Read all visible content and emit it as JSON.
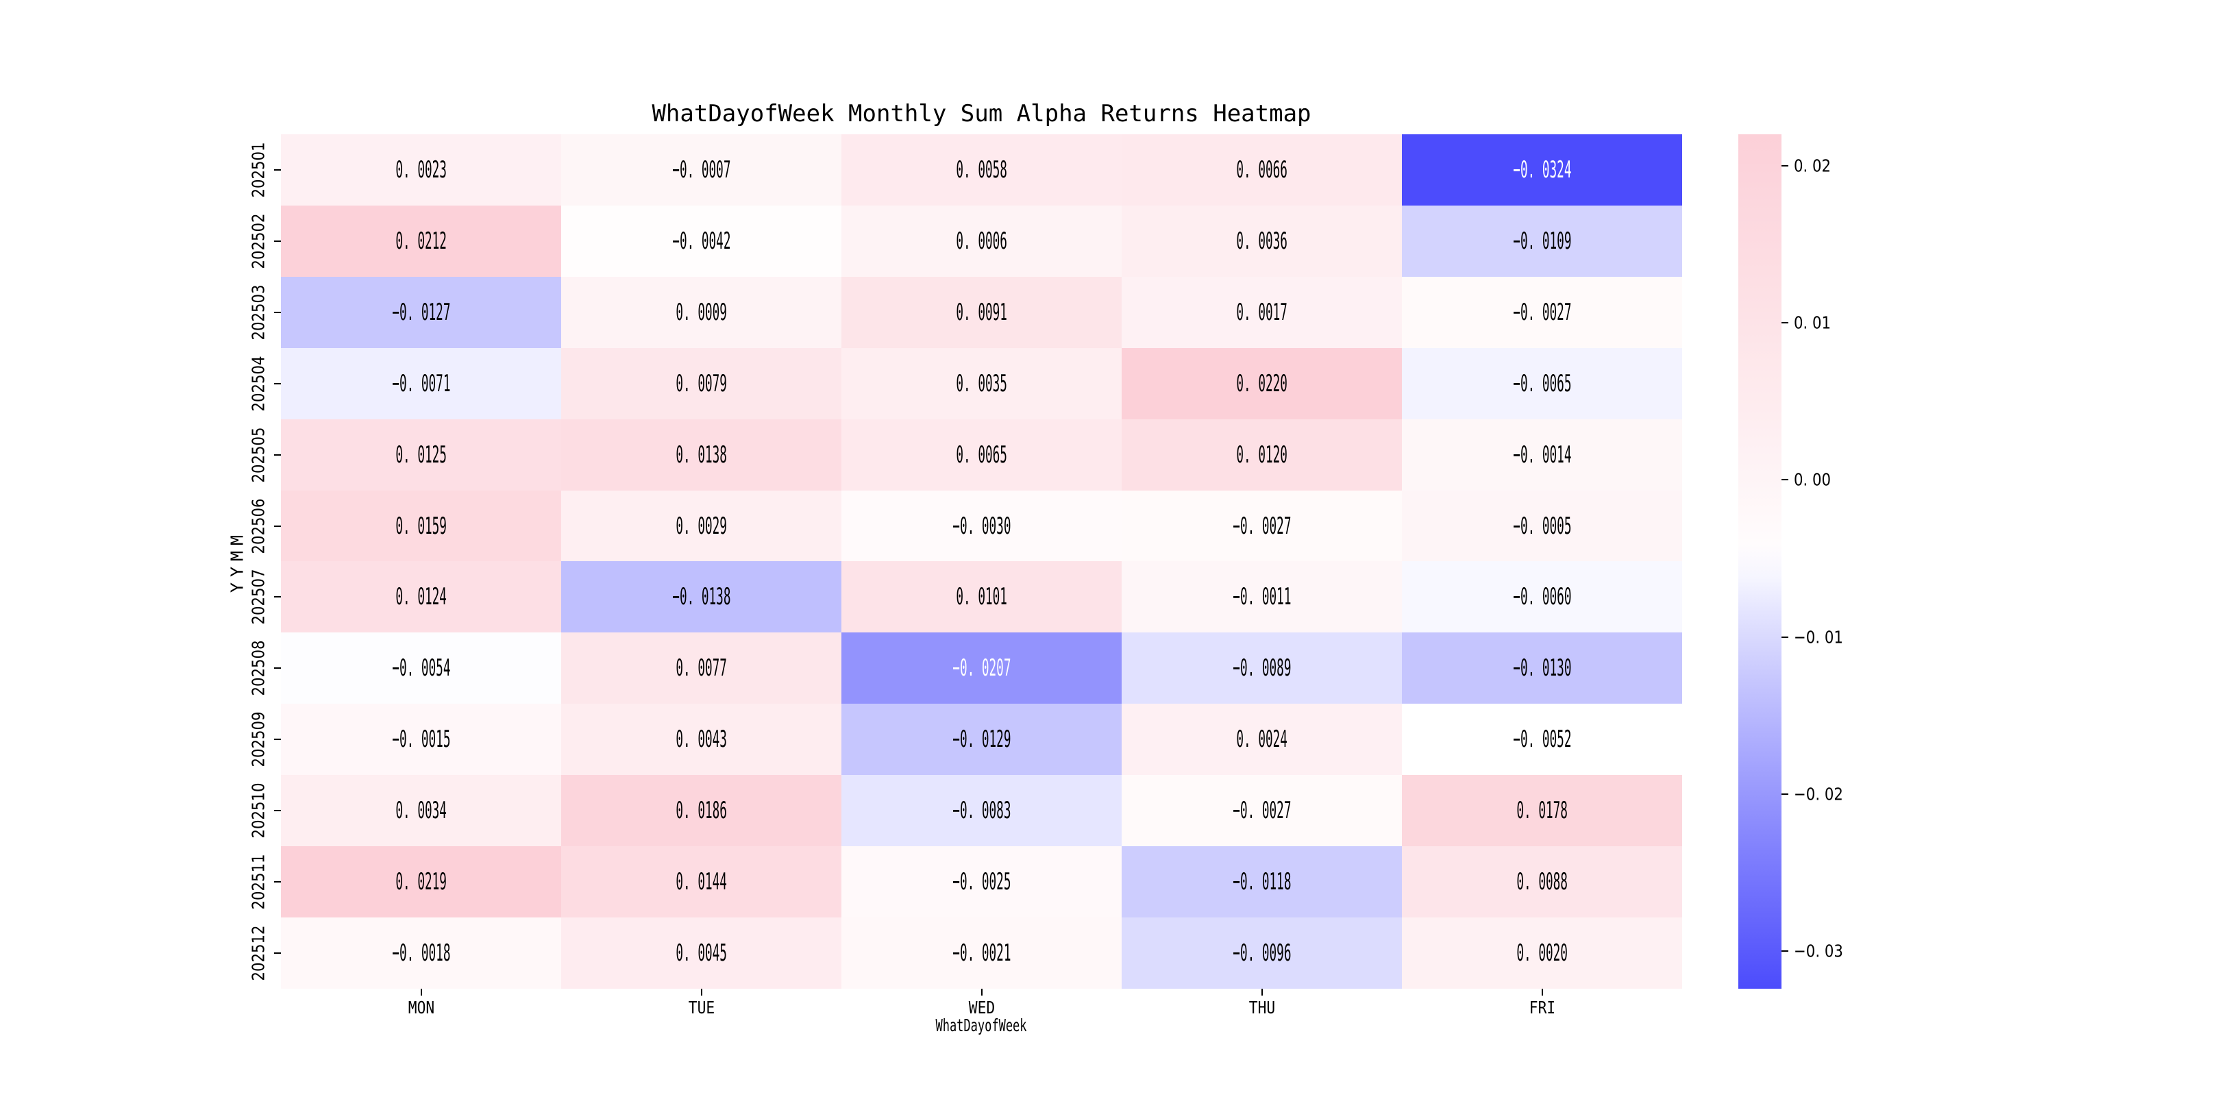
{
  "figure": {
    "background_color": "#ffffff",
    "text_color": "#000000"
  },
  "chart_data": {
    "type": "heatmap",
    "title": "WhatDayofWeek Monthly Sum Alpha Returns Heatmap",
    "xlabel": "WhatDayofWeek",
    "ylabel": "YYMM",
    "columns": [
      "MON",
      "TUE",
      "WED",
      "THU",
      "FRI"
    ],
    "rows": [
      "202501",
      "202502",
      "202503",
      "202504",
      "202505",
      "202506",
      "202507",
      "202508",
      "202509",
      "202510",
      "202511",
      "202512"
    ],
    "values": [
      [
        0.0023,
        -0.0007,
        0.0058,
        0.0066,
        -0.0324
      ],
      [
        0.0212,
        -0.0042,
        0.0006,
        0.0036,
        -0.0109
      ],
      [
        -0.0127,
        0.0009,
        0.0091,
        0.0017,
        -0.0027
      ],
      [
        -0.0071,
        0.0079,
        0.0035,
        0.022,
        -0.0065
      ],
      [
        0.0125,
        0.0138,
        0.0065,
        0.012,
        -0.0014
      ],
      [
        0.0159,
        0.0029,
        -0.003,
        -0.0027,
        -0.0005
      ],
      [
        0.0124,
        -0.0138,
        0.0101,
        -0.0011,
        -0.006
      ],
      [
        -0.0054,
        0.0077,
        -0.0207,
        -0.0089,
        -0.013
      ],
      [
        -0.0015,
        0.0043,
        -0.0129,
        0.0024,
        -0.0052
      ],
      [
        0.0034,
        0.0186,
        -0.0083,
        -0.0027,
        0.0178
      ],
      [
        0.0219,
        0.0144,
        -0.0025,
        -0.0118,
        0.0088
      ],
      [
        -0.0018,
        0.0045,
        -0.0021,
        -0.0096,
        0.002
      ]
    ],
    "value_decimals": 4,
    "vmin": -0.0324,
    "vmax": 0.022,
    "colormap": {
      "negative_end_color": "#4C4CFC",
      "center_color": "#FFFFFF",
      "positive_end_color": "#FCD0D8",
      "center_value": -0.0052,
      "ramp_gamma": 0.9
    },
    "annotation_dark_text_color": "#000000",
    "annotation_light_text_color": "#FFFFFF",
    "colorbar": {
      "ticks": [
        0.02,
        0.01,
        0.0,
        -0.01,
        -0.02,
        -0.03
      ],
      "tick_decimals": 2,
      "position": "right"
    },
    "grid": false,
    "legend": false
  }
}
